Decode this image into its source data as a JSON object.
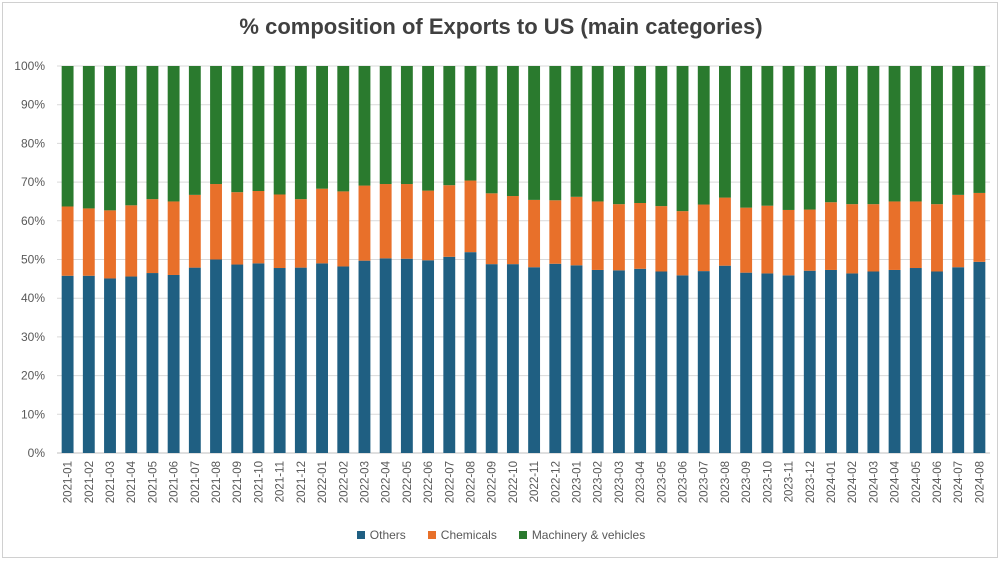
{
  "chart_data": {
    "type": "bar",
    "stacked": true,
    "percent": true,
    "title": "% composition of Exports to US (main categories)",
    "xlabel": "",
    "ylabel": "",
    "ylim": [
      0,
      100
    ],
    "yticks": [
      "0%",
      "10%",
      "20%",
      "30%",
      "40%",
      "50%",
      "60%",
      "70%",
      "80%",
      "90%",
      "100%"
    ],
    "grid": true,
    "legend_position": "bottom",
    "categories": [
      "2021-01",
      "2021-02",
      "2021-03",
      "2021-04",
      "2021-05",
      "2021-06",
      "2021-07",
      "2021-08",
      "2021-09",
      "2021-10",
      "2021-11",
      "2021-12",
      "2022-01",
      "2022-02",
      "2022-03",
      "2022-04",
      "2022-05",
      "2022-06",
      "2022-07",
      "2022-08",
      "2022-09",
      "2022-10",
      "2022-11",
      "2022-12",
      "2023-01",
      "2023-02",
      "2023-03",
      "2023-04",
      "2023-05",
      "2023-06",
      "2023-07",
      "2023-08",
      "2023-09",
      "2023-10",
      "2023-11",
      "2023-12",
      "2024-01",
      "2024-02",
      "2024-03",
      "2024-04",
      "2024-05",
      "2024-06",
      "2024-07",
      "2024-08"
    ],
    "series": [
      {
        "name": "Others",
        "color": "#1f5f82",
        "values": [
          45.8,
          45.8,
          45.1,
          45.6,
          46.5,
          46.0,
          47.9,
          50.0,
          48.7,
          49.0,
          47.8,
          47.9,
          49.0,
          48.2,
          49.7,
          50.3,
          50.2,
          49.8,
          50.7,
          51.9,
          48.8,
          48.8,
          48.0,
          48.9,
          48.5,
          47.3,
          47.2,
          47.6,
          46.9,
          45.9,
          47.0,
          48.4,
          46.6,
          46.4,
          45.9,
          47.1,
          47.3,
          46.4,
          46.9,
          47.3,
          47.8,
          46.9,
          48.0,
          49.4
        ]
      },
      {
        "name": "Chemicals",
        "color": "#e8702a",
        "values": [
          17.9,
          17.4,
          17.6,
          18.4,
          19.1,
          19.0,
          18.8,
          19.5,
          18.7,
          18.7,
          19.0,
          17.7,
          19.3,
          19.4,
          19.4,
          19.2,
          19.3,
          18.0,
          18.5,
          18.5,
          18.3,
          17.6,
          17.4,
          16.4,
          17.7,
          17.7,
          17.1,
          17.0,
          16.9,
          16.6,
          17.2,
          17.6,
          16.8,
          17.5,
          16.9,
          15.8,
          17.5,
          17.9,
          17.4,
          17.7,
          17.2,
          17.4,
          18.7,
          17.8
        ]
      },
      {
        "name": "Machinery & vehicles",
        "color": "#2a7a2e",
        "values": [
          36.3,
          36.8,
          37.3,
          36.0,
          34.4,
          35.0,
          33.3,
          30.5,
          32.6,
          32.3,
          33.2,
          34.4,
          31.7,
          32.4,
          30.9,
          30.5,
          30.5,
          32.2,
          30.8,
          29.6,
          32.9,
          33.6,
          34.6,
          34.7,
          33.8,
          35.0,
          35.7,
          35.4,
          36.2,
          37.5,
          35.8,
          34.0,
          36.6,
          36.1,
          37.2,
          37.1,
          35.2,
          35.7,
          35.7,
          35.0,
          35.0,
          35.7,
          33.3,
          32.8
        ]
      }
    ]
  }
}
